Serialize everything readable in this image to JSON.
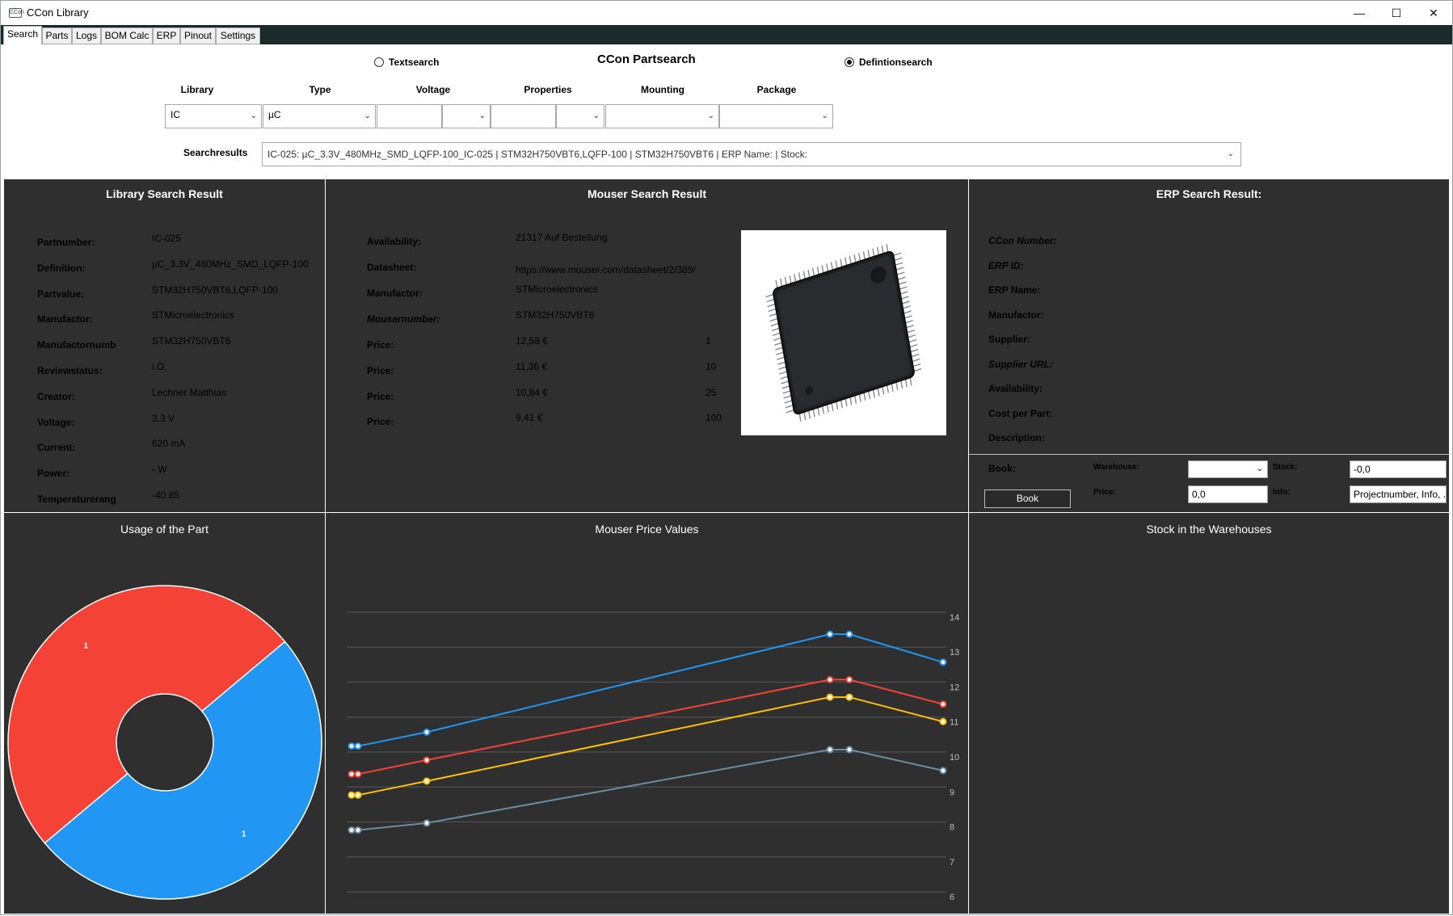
{
  "window": {
    "title": "CCon Library",
    "icon_text": "CCon",
    "controls": {
      "minimize": "—",
      "maximize": "☐",
      "close": "✕"
    }
  },
  "tabs": [
    "Search",
    "Parts",
    "Logs",
    "BOM Calc",
    "ERP",
    "Pinout",
    "Settings"
  ],
  "search": {
    "title": "CCon Partsearch",
    "textsearch_label": "Textsearch",
    "definitionsearch_label": "Defintionsearch",
    "mode_selected": "definitionsearch",
    "columns": {
      "library": {
        "label": "Library",
        "value": "IC"
      },
      "type": {
        "label": "Type",
        "value": "µC"
      },
      "voltage": {
        "label": "Voltage",
        "value": "",
        "unit": ""
      },
      "properties": {
        "label": "Properties",
        "value": "",
        "unit": ""
      },
      "mounting": {
        "label": "Mounting",
        "value": ""
      },
      "package": {
        "label": "Package",
        "value": ""
      }
    },
    "results_label": "Searchresults",
    "results_value": "IC-025: µC_3.3V_480MHz_SMD_LQFP-100_IC-025 | STM32H750VBT6,LQFP-100 | STM32H750VBT6 | ERP Name:  | Stock:"
  },
  "library_result": {
    "title": "Library Search Result",
    "fields": [
      {
        "label": "Partnumber:",
        "value": "IC-025"
      },
      {
        "label": "Definition:",
        "value": "µC_3.3V_480MHz_SMD_LQFP-100"
      },
      {
        "label": "Partvalue:",
        "value": "STM32H750VBT6,LQFP-100"
      },
      {
        "label": "Manufactor:",
        "value": "STMicroelectronics"
      },
      {
        "label": "Manufactornumb",
        "value": "STM32H750VBT6"
      },
      {
        "label": "Reviewstatus:",
        "value": "i.O."
      },
      {
        "label": "Creator:",
        "value": "Lechner Matthias"
      },
      {
        "label": "Voltage:",
        "value": "3.3 V"
      },
      {
        "label": "Current:",
        "value": "620 mA"
      },
      {
        "label": "Power:",
        "value": "- W"
      },
      {
        "label": "Temperaturerang",
        "value": "-40 85"
      }
    ]
  },
  "mouser_result": {
    "title": "Mouser Search Result",
    "availability": {
      "label": "Availability:",
      "value": "21317 Auf Bestellung"
    },
    "datasheet": {
      "label": "Datasheet:",
      "value": "https://www.mouser.com/datasheet/2/389/"
    },
    "manufactor": {
      "label": "Manufactor:",
      "value": "STMicroelectronics"
    },
    "mousernumber": {
      "label": "Mousernumber:",
      "value": "STM32H750VBT6"
    },
    "prices": [
      {
        "label": "Price:",
        "value": "12,58 €",
        "qty": "1"
      },
      {
        "label": "Price:",
        "value": "11,36 €",
        "qty": "10"
      },
      {
        "label": "Price:",
        "value": "10,84 €",
        "qty": "25"
      },
      {
        "label": "Price:",
        "value": "9,41 €",
        "qty": "100"
      }
    ]
  },
  "erp_result": {
    "title": "ERP Search Result:",
    "fields": [
      {
        "label": "CCon Number:",
        "italic": true
      },
      {
        "label": "ERP ID:",
        "italic": true
      },
      {
        "label": "ERP Name:",
        "italic": false
      },
      {
        "label": "Manufactor:",
        "italic": false
      },
      {
        "label": "Supplier:",
        "italic": false
      },
      {
        "label": "Supplier URL:",
        "italic": true
      },
      {
        "label": "Availability:",
        "italic": false
      },
      {
        "label": "Cost per Part:",
        "italic": false
      },
      {
        "label": "Description:",
        "italic": false
      }
    ],
    "book": {
      "label": "Book:",
      "button": "Book",
      "warehouse_label": "Warehouse:",
      "warehouse_value": "",
      "stock_label": "Stock:",
      "stock_value": "-0,0",
      "price_label": "Price:",
      "price_value": "0,0",
      "info_label": "Info:",
      "info_value": "Projectnumber, Info, ..."
    }
  },
  "charts": {
    "usage_title": "Usage of the Part",
    "price_title": "Mouser Price Values",
    "stock_title": "Stock in the Warehouses"
  },
  "chart_data": [
    {
      "type": "pie",
      "title": "Usage of the Part",
      "donut": true,
      "slices": [
        {
          "label": "1",
          "value": 1,
          "color": "#f44336"
        },
        {
          "label": "1",
          "value": 1,
          "color": "#2196f3"
        }
      ]
    },
    {
      "type": "line",
      "title": "Mouser Price Values",
      "x_points": 6,
      "y_ticks": [
        "6",
        "7",
        "8",
        "9",
        "10",
        "11",
        "12",
        "13",
        "14"
      ],
      "ylim": [
        5.75,
        14.25
      ],
      "grid": true,
      "series": [
        {
          "color": "#2196f3",
          "values": [
            10.4,
            10.4,
            10.8,
            13.6,
            13.6,
            12.8
          ]
        },
        {
          "color": "#f44336",
          "values": [
            9.6,
            9.6,
            10.0,
            12.3,
            12.3,
            11.6
          ]
        },
        {
          "color": "#ffc107",
          "values": [
            9.0,
            9.0,
            9.4,
            11.8,
            11.8,
            11.1
          ]
        },
        {
          "color": "#6b8ea0",
          "values": [
            8.0,
            8.0,
            8.2,
            10.3,
            10.3,
            9.7
          ]
        }
      ]
    }
  ]
}
